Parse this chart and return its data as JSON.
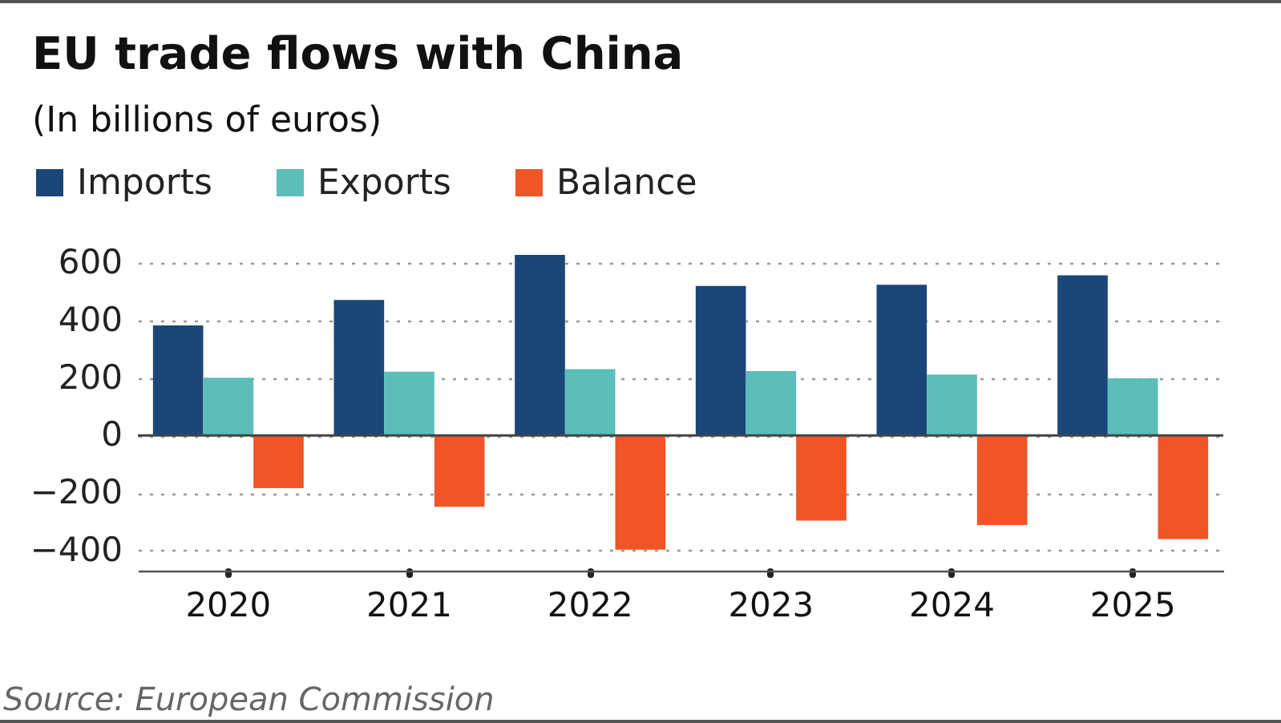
{
  "chart_data": {
    "type": "bar",
    "title": "EU trade flows with China",
    "subtitle": "(In billions of euros)",
    "annotations": [
      "Source: European Commission"
    ],
    "categories": [
      "2020",
      "2021",
      "2022",
      "2023",
      "2024",
      "2025"
    ],
    "series": [
      {
        "name": "Imports",
        "color": "#1b4678",
        "values": [
          383,
          471,
          628,
          520,
          524,
          557
        ]
      },
      {
        "name": "Exports",
        "color": "#5cbdb9",
        "values": [
          201,
          222,
          231,
          224,
          212,
          199
        ]
      },
      {
        "name": "Balance",
        "color": "#ef5527",
        "values": [
          -183,
          -248,
          -397,
          -296,
          -311,
          -360
        ]
      }
    ],
    "ylim": [
      -470,
      628
    ],
    "yticks": [
      -400,
      -200,
      0,
      200,
      400,
      600
    ],
    "grid": "y",
    "legend": "top left",
    "ref_lines": [
      {
        "axis": "y",
        "value": 0,
        "color": "#444444"
      }
    ]
  }
}
